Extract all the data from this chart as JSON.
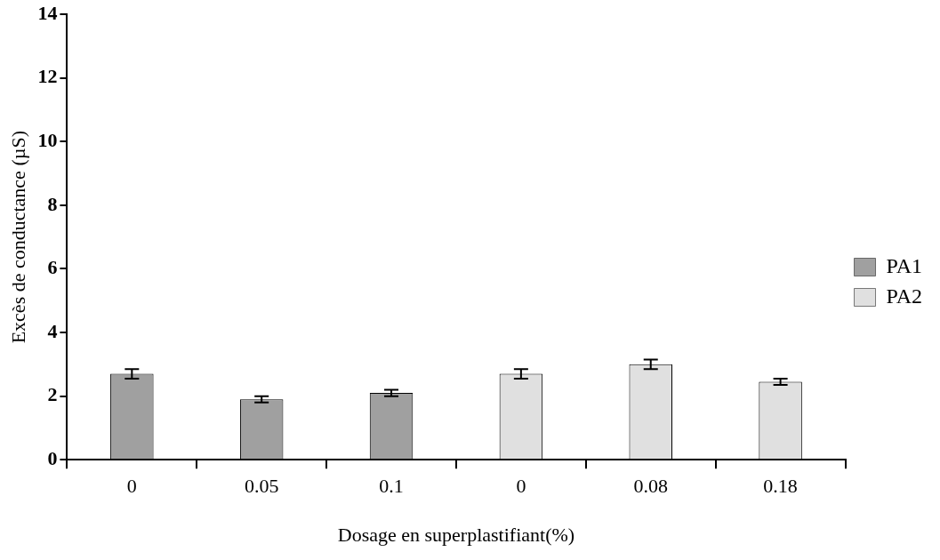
{
  "chart_data": {
    "type": "bar",
    "xlabel": "Dosage en superplastifiant(%)",
    "ylabel": "Excès de conductance (µS)",
    "categories": [
      "0",
      "0.05",
      "0.1",
      "0",
      "0.08",
      "0.18"
    ],
    "series": [
      {
        "name": "PA1",
        "color": "#a0a0a0",
        "values": [
          2.7,
          1.9,
          2.1,
          null,
          null,
          null
        ],
        "errors": [
          0.15,
          0.1,
          0.1,
          null,
          null,
          null
        ]
      },
      {
        "name": "PA2",
        "color": "#e0e0e0",
        "values": [
          null,
          null,
          null,
          2.7,
          3.0,
          2.45
        ],
        "errors": [
          null,
          null,
          null,
          0.15,
          0.15,
          0.1
        ]
      }
    ],
    "ylim": [
      0,
      14
    ],
    "yticks": [
      0,
      2,
      4,
      6,
      8,
      10,
      12,
      14
    ],
    "grid": false,
    "legend": "right"
  }
}
